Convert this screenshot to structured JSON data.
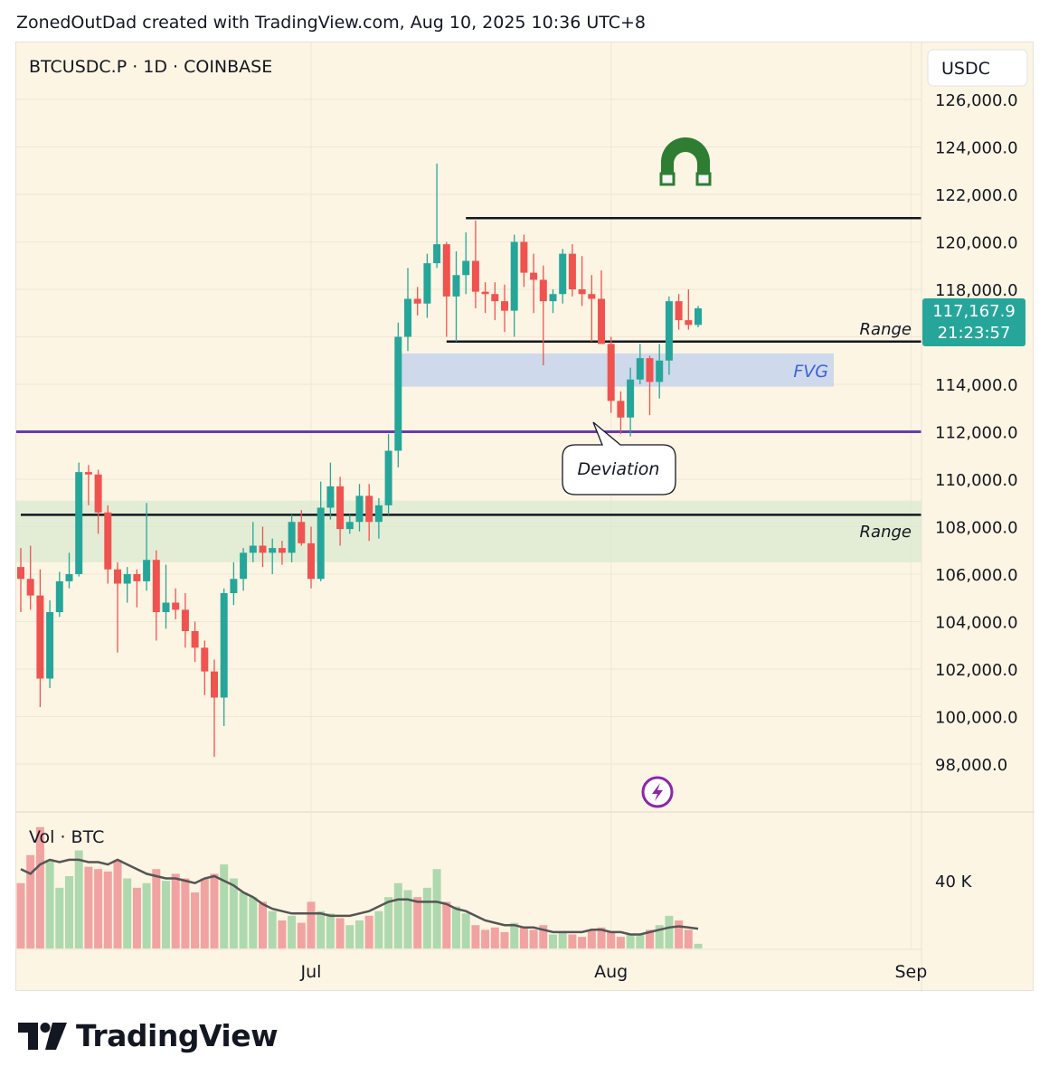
{
  "header": {
    "attribution": "ZonedOutDad created with TradingView.com, Aug 10, 2025 10:36 UTC+8"
  },
  "footer": {
    "brand": "TradingView"
  },
  "symbol": {
    "label": "BTCUSDC.P · 1D · COINBASE"
  },
  "volume_pane": {
    "label": "Vol · BTC",
    "axis_label": "40 K"
  },
  "price_axis": {
    "currency": "USDC",
    "ticks": [
      "126,000.0",
      "124,000.0",
      "122,000.0",
      "120,000.0",
      "118,000.0",
      "114,000.0",
      "112,000.0",
      "110,000.0",
      "108,000.0",
      "106,000.0",
      "104,000.0",
      "102,000.0",
      "100,000.0",
      "98,000.0"
    ],
    "current_price": "117,167.9",
    "countdown": "21:23:57"
  },
  "time_axis": {
    "labels": [
      "Jul",
      "Aug",
      "Sep"
    ]
  },
  "annotations": {
    "range_upper": "Range",
    "range_lower": "Range",
    "fvg": "FVG",
    "deviation": "Deviation"
  },
  "colors": {
    "up": "#26a69a",
    "down": "#ef5350",
    "purple_line": "#673ab7",
    "fvg_zone": "#c5d3ec",
    "green_zone": "#d9ead0",
    "background": "#fdf5e3",
    "badge": "#26a69a"
  },
  "chart_data": {
    "type": "candlestick",
    "title": "BTCUSDC.P · 1D · COINBASE",
    "ylim": [
      96500,
      127000
    ],
    "volume_ylim": [
      0,
      55000
    ],
    "x_start": "2025-06-01",
    "candles": [
      {
        "date": "2025-06-01",
        "o": 106300,
        "h": 107100,
        "l": 104400,
        "c": 105800
      },
      {
        "date": "2025-06-02",
        "o": 105800,
        "h": 107200,
        "l": 104500,
        "c": 105100
      },
      {
        "date": "2025-06-03",
        "o": 105100,
        "h": 106200,
        "l": 100400,
        "c": 101600
      },
      {
        "date": "2025-06-04",
        "o": 101600,
        "h": 104900,
        "l": 101200,
        "c": 104400
      },
      {
        "date": "2025-06-05",
        "o": 104400,
        "h": 106100,
        "l": 104200,
        "c": 105700
      },
      {
        "date": "2025-06-06",
        "o": 105700,
        "h": 106900,
        "l": 105400,
        "c": 106000
      },
      {
        "date": "2025-06-07",
        "o": 106000,
        "h": 110700,
        "l": 105900,
        "c": 110300
      },
      {
        "date": "2025-06-08",
        "o": 110300,
        "h": 110600,
        "l": 108900,
        "c": 110200
      },
      {
        "date": "2025-06-09",
        "o": 110200,
        "h": 110400,
        "l": 107700,
        "c": 108600
      },
      {
        "date": "2025-06-10",
        "o": 108600,
        "h": 108900,
        "l": 105600,
        "c": 106200
      },
      {
        "date": "2025-06-11",
        "o": 106200,
        "h": 106500,
        "l": 102700,
        "c": 105600
      },
      {
        "date": "2025-06-12",
        "o": 105600,
        "h": 106300,
        "l": 104800,
        "c": 106000
      },
      {
        "date": "2025-06-13",
        "o": 106000,
        "h": 106200,
        "l": 104600,
        "c": 105700
      },
      {
        "date": "2025-06-14",
        "o": 105700,
        "h": 109000,
        "l": 105300,
        "c": 106600
      },
      {
        "date": "2025-06-15",
        "o": 106600,
        "h": 107000,
        "l": 103200,
        "c": 104400
      },
      {
        "date": "2025-06-16",
        "o": 104400,
        "h": 106400,
        "l": 103700,
        "c": 104800
      },
      {
        "date": "2025-06-17",
        "o": 104800,
        "h": 105400,
        "l": 104100,
        "c": 104500
      },
      {
        "date": "2025-06-18",
        "o": 104500,
        "h": 105200,
        "l": 102900,
        "c": 103600
      },
      {
        "date": "2025-06-19",
        "o": 103600,
        "h": 104000,
        "l": 102300,
        "c": 102900
      },
      {
        "date": "2025-06-20",
        "o": 102900,
        "h": 103200,
        "l": 100900,
        "c": 101900
      },
      {
        "date": "2025-06-21",
        "o": 101900,
        "h": 102400,
        "l": 98300,
        "c": 100800
      },
      {
        "date": "2025-06-22",
        "o": 100800,
        "h": 105400,
        "l": 99600,
        "c": 105200
      },
      {
        "date": "2025-06-23",
        "o": 105200,
        "h": 106500,
        "l": 104700,
        "c": 105800
      },
      {
        "date": "2025-06-24",
        "o": 105800,
        "h": 107100,
        "l": 105300,
        "c": 106900
      },
      {
        "date": "2025-06-25",
        "o": 106900,
        "h": 108200,
        "l": 106500,
        "c": 107200
      },
      {
        "date": "2025-06-26",
        "o": 107200,
        "h": 108000,
        "l": 106300,
        "c": 106900
      },
      {
        "date": "2025-06-27",
        "o": 106900,
        "h": 107500,
        "l": 106000,
        "c": 107100
      },
      {
        "date": "2025-06-28",
        "o": 107100,
        "h": 107400,
        "l": 106400,
        "c": 106900
      },
      {
        "date": "2025-06-29",
        "o": 106900,
        "h": 108500,
        "l": 106500,
        "c": 108200
      },
      {
        "date": "2025-06-30",
        "o": 108200,
        "h": 108700,
        "l": 107200,
        "c": 107300
      },
      {
        "date": "2025-07-01",
        "o": 107300,
        "h": 108000,
        "l": 105400,
        "c": 105800
      },
      {
        "date": "2025-07-02",
        "o": 105800,
        "h": 109900,
        "l": 105700,
        "c": 108800
      },
      {
        "date": "2025-07-03",
        "o": 108800,
        "h": 110700,
        "l": 108300,
        "c": 109700
      },
      {
        "date": "2025-07-04",
        "o": 109700,
        "h": 110100,
        "l": 107200,
        "c": 107900
      },
      {
        "date": "2025-07-05",
        "o": 107900,
        "h": 108500,
        "l": 107700,
        "c": 108200
      },
      {
        "date": "2025-07-06",
        "o": 108200,
        "h": 109800,
        "l": 107800,
        "c": 109300
      },
      {
        "date": "2025-07-07",
        "o": 109300,
        "h": 109800,
        "l": 107400,
        "c": 108200
      },
      {
        "date": "2025-07-08",
        "o": 108200,
        "h": 109200,
        "l": 107500,
        "c": 108900
      },
      {
        "date": "2025-07-09",
        "o": 108900,
        "h": 111900,
        "l": 108500,
        "c": 111200
      },
      {
        "date": "2025-07-10",
        "o": 111200,
        "h": 116600,
        "l": 110500,
        "c": 116000
      },
      {
        "date": "2025-07-11",
        "o": 116000,
        "h": 118900,
        "l": 115400,
        "c": 117600
      },
      {
        "date": "2025-07-12",
        "o": 117600,
        "h": 118100,
        "l": 116900,
        "c": 117400
      },
      {
        "date": "2025-07-13",
        "o": 117400,
        "h": 119500,
        "l": 116800,
        "c": 119100
      },
      {
        "date": "2025-07-14",
        "o": 119100,
        "h": 123300,
        "l": 118900,
        "c": 119900
      },
      {
        "date": "2025-07-15",
        "o": 119900,
        "h": 120000,
        "l": 116000,
        "c": 117700
      },
      {
        "date": "2025-07-16",
        "o": 117700,
        "h": 119600,
        "l": 115800,
        "c": 118600
      },
      {
        "date": "2025-07-17",
        "o": 118600,
        "h": 120400,
        "l": 117800,
        "c": 119200
      },
      {
        "date": "2025-07-18",
        "o": 119200,
        "h": 120900,
        "l": 117200,
        "c": 117900
      },
      {
        "date": "2025-07-19",
        "o": 117900,
        "h": 118300,
        "l": 117000,
        "c": 117800
      },
      {
        "date": "2025-07-20",
        "o": 117800,
        "h": 118300,
        "l": 116700,
        "c": 117500
      },
      {
        "date": "2025-07-21",
        "o": 117500,
        "h": 118200,
        "l": 116200,
        "c": 117100
      },
      {
        "date": "2025-07-22",
        "o": 117100,
        "h": 120300,
        "l": 116000,
        "c": 120000
      },
      {
        "date": "2025-07-23",
        "o": 120000,
        "h": 120300,
        "l": 118100,
        "c": 118700
      },
      {
        "date": "2025-07-24",
        "o": 118700,
        "h": 119500,
        "l": 117000,
        "c": 118400
      },
      {
        "date": "2025-07-25",
        "o": 118400,
        "h": 119000,
        "l": 114800,
        "c": 117500
      },
      {
        "date": "2025-07-26",
        "o": 117500,
        "h": 118000,
        "l": 117000,
        "c": 117800
      },
      {
        "date": "2025-07-27",
        "o": 117800,
        "h": 119700,
        "l": 117400,
        "c": 119500
      },
      {
        "date": "2025-07-28",
        "o": 119500,
        "h": 119900,
        "l": 117700,
        "c": 118000
      },
      {
        "date": "2025-07-29",
        "o": 118000,
        "h": 119400,
        "l": 117300,
        "c": 117800
      },
      {
        "date": "2025-07-30",
        "o": 117800,
        "h": 118600,
        "l": 115800,
        "c": 117600
      },
      {
        "date": "2025-07-31",
        "o": 117600,
        "h": 118800,
        "l": 115800,
        "c": 115700
      },
      {
        "date": "2025-08-01",
        "o": 115700,
        "h": 116000,
        "l": 112800,
        "c": 113300
      },
      {
        "date": "2025-08-02",
        "o": 113300,
        "h": 113700,
        "l": 111900,
        "c": 112600
      },
      {
        "date": "2025-08-03",
        "o": 112600,
        "h": 114700,
        "l": 111800,
        "c": 114200
      },
      {
        "date": "2025-08-04",
        "o": 114200,
        "h": 115700,
        "l": 114000,
        "c": 115100
      },
      {
        "date": "2025-08-05",
        "o": 115100,
        "h": 115200,
        "l": 112700,
        "c": 114100
      },
      {
        "date": "2025-08-06",
        "o": 114100,
        "h": 115700,
        "l": 113400,
        "c": 115000
      },
      {
        "date": "2025-08-07",
        "o": 115000,
        "h": 117700,
        "l": 114400,
        "c": 117500
      },
      {
        "date": "2025-08-08",
        "o": 117500,
        "h": 117800,
        "l": 116300,
        "c": 116700
      },
      {
        "date": "2025-08-09",
        "o": 116700,
        "h": 118000,
        "l": 116300,
        "c": 116500
      },
      {
        "date": "2025-08-10",
        "o": 116500,
        "h": 117300,
        "l": 116400,
        "c": 117200
      }
    ],
    "volume": [
      28000,
      40000,
      52000,
      38000,
      26000,
      31000,
      42000,
      35000,
      34000,
      33000,
      38000,
      30000,
      26000,
      28000,
      34000,
      29000,
      32000,
      30000,
      24000,
      30000,
      32000,
      36000,
      30000,
      24000,
      22000,
      20000,
      16000,
      12000,
      14000,
      11000,
      20000,
      16000,
      15000,
      13000,
      10000,
      12000,
      14000,
      16000,
      22000,
      28000,
      25000,
      22000,
      26000,
      34000,
      20000,
      18000,
      15000,
      10000,
      8000,
      9000,
      7000,
      11000,
      9000,
      8000,
      10000,
      6000,
      7000,
      6000,
      5000,
      8000,
      9000,
      7000,
      5000,
      6000,
      6000,
      8000,
      10000,
      14000,
      12000,
      8000,
      2000
    ],
    "volume_ma": [
      34000,
      32000,
      36000,
      38000,
      37000,
      38000,
      38000,
      37000,
      37000,
      36000,
      38000,
      36000,
      34000,
      32000,
      31000,
      30000,
      30000,
      29000,
      28000,
      30000,
      31000,
      29000,
      27000,
      24000,
      22000,
      19000,
      17000,
      16000,
      15000,
      15000,
      15000,
      15000,
      14000,
      14000,
      14000,
      15000,
      16000,
      18000,
      20000,
      21000,
      21000,
      20000,
      20000,
      20000,
      19000,
      17000,
      16000,
      14000,
      12000,
      11000,
      10000,
      10000,
      9000,
      9000,
      8000,
      7000,
      7000,
      7000,
      7000,
      8000,
      8000,
      7000,
      7000,
      6000,
      6000,
      7000,
      8000,
      9000,
      9500,
      9000,
      8500
    ],
    "levels": [
      {
        "name": "Range",
        "price": 121000,
        "from": "2025-07-17"
      },
      {
        "name": "Range",
        "price": 115800,
        "from": "2025-07-15"
      },
      {
        "name": "",
        "price": 112000,
        "from": "2025-06-01"
      },
      {
        "name": "Range",
        "price": 108500,
        "from": "2025-06-01"
      }
    ],
    "zones": [
      {
        "name": "FVG",
        "from_price": 113900,
        "to_price": 115300,
        "from": "2025-07-10",
        "to": "2025-09-05"
      },
      {
        "name": "Range",
        "from_price": 106500,
        "to_price": 109100,
        "from": "2025-06-01",
        "to": "2025-09-10"
      }
    ]
  }
}
